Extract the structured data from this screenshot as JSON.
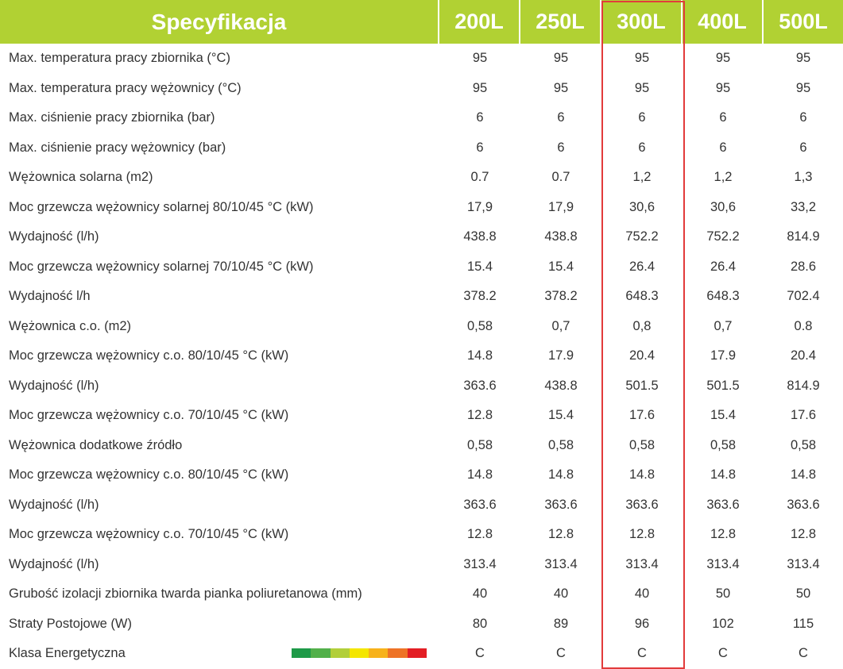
{
  "header": {
    "title": "Specyfikacja",
    "columns": [
      "200L",
      "250L",
      "300L",
      "400L",
      "500L"
    ]
  },
  "rows": [
    {
      "label": "Max. temperatura pracy zbiornika (°C)",
      "values": [
        "95",
        "95",
        "95",
        "95",
        "95"
      ]
    },
    {
      "label": "Max. temperatura pracy wężownicy (°C)",
      "values": [
        "95",
        "95",
        "95",
        "95",
        "95"
      ]
    },
    {
      "label": "Max. ciśnienie pracy zbiornika (bar)",
      "values": [
        "6",
        "6",
        "6",
        "6",
        "6"
      ]
    },
    {
      "label": "Max. ciśnienie pracy wężownicy (bar)",
      "values": [
        "6",
        "6",
        "6",
        "6",
        "6"
      ]
    },
    {
      "label": "Wężownica solarna (m2)",
      "values": [
        "0.7",
        "0.7",
        "1,2",
        "1,2",
        "1,3"
      ]
    },
    {
      "label": "Moc grzewcza wężownicy solarnej 80/10/45 °C (kW)",
      "values": [
        "17,9",
        "17,9",
        "30,6",
        "30,6",
        "33,2"
      ]
    },
    {
      "label": "Wydajność (l/h)",
      "values": [
        "438.8",
        "438.8",
        "752.2",
        "752.2",
        "814.9"
      ]
    },
    {
      "label": "Moc grzewcza wężownicy solarnej 70/10/45 °C (kW)",
      "values": [
        "15.4",
        "15.4",
        "26.4",
        "26.4",
        "28.6"
      ]
    },
    {
      "label": "Wydajność l/h",
      "values": [
        "378.2",
        "378.2",
        "648.3",
        "648.3",
        "702.4"
      ]
    },
    {
      "label": "Wężownica c.o. (m2)",
      "values": [
        "0,58",
        "0,7",
        "0,8",
        "0,7",
        "0.8"
      ]
    },
    {
      "label": "Moc grzewcza wężownicy c.o. 80/10/45 °C (kW)",
      "values": [
        "14.8",
        "17.9",
        "20.4",
        "17.9",
        "20.4"
      ]
    },
    {
      "label": "Wydajność (l/h)",
      "values": [
        "363.6",
        "438.8",
        "501.5",
        "501.5",
        "814.9"
      ]
    },
    {
      "label": "Moc grzewcza wężownicy c.o. 70/10/45 °C (kW)",
      "values": [
        "12.8",
        "15.4",
        "17.6",
        "15.4",
        "17.6"
      ]
    },
    {
      "label": "Wężownica dodatkowe źródło",
      "values": [
        "0,58",
        "0,58",
        "0,58",
        "0,58",
        "0,58"
      ]
    },
    {
      "label": "Moc grzewcza wężownicy c.o. 80/10/45 °C (kW)",
      "values": [
        "14.8",
        "14.8",
        "14.8",
        "14.8",
        "14.8"
      ]
    },
    {
      "label": "Wydajność (l/h)",
      "values": [
        "363.6",
        "363.6",
        "363.6",
        "363.6",
        "363.6"
      ]
    },
    {
      "label": "Moc grzewcza wężownicy c.o. 70/10/45 °C (kW)",
      "values": [
        "12.8",
        "12.8",
        "12.8",
        "12.8",
        "12.8"
      ]
    },
    {
      "label": "Wydajność (l/h)",
      "values": [
        "313.4",
        "313.4",
        "313.4",
        "313.4",
        "313.4"
      ]
    },
    {
      "label": "Grubość izolacji zbiornika twarda pianka poliuretanowa (mm)",
      "values": [
        "40",
        "40",
        "40",
        "50",
        "50"
      ]
    },
    {
      "label": "Straty Postojowe (W)",
      "values": [
        "80",
        "89",
        "96",
        "102",
        "115"
      ]
    },
    {
      "label": "Klasa Energetyczna",
      "values": [
        "C",
        "C",
        "C",
        "C",
        "C"
      ],
      "energy_scale": true
    }
  ],
  "energy_scale_colors": [
    "#1e9a48",
    "#52b04a",
    "#b2cf3a",
    "#f4e600",
    "#f7b21b",
    "#ee7326",
    "#e31e24"
  ],
  "highlight": {
    "column": "300L",
    "color": "#e23b3b"
  },
  "colors": {
    "header_bg": "#b1d133",
    "header_text": "#ffffff",
    "body_text": "#333333"
  }
}
